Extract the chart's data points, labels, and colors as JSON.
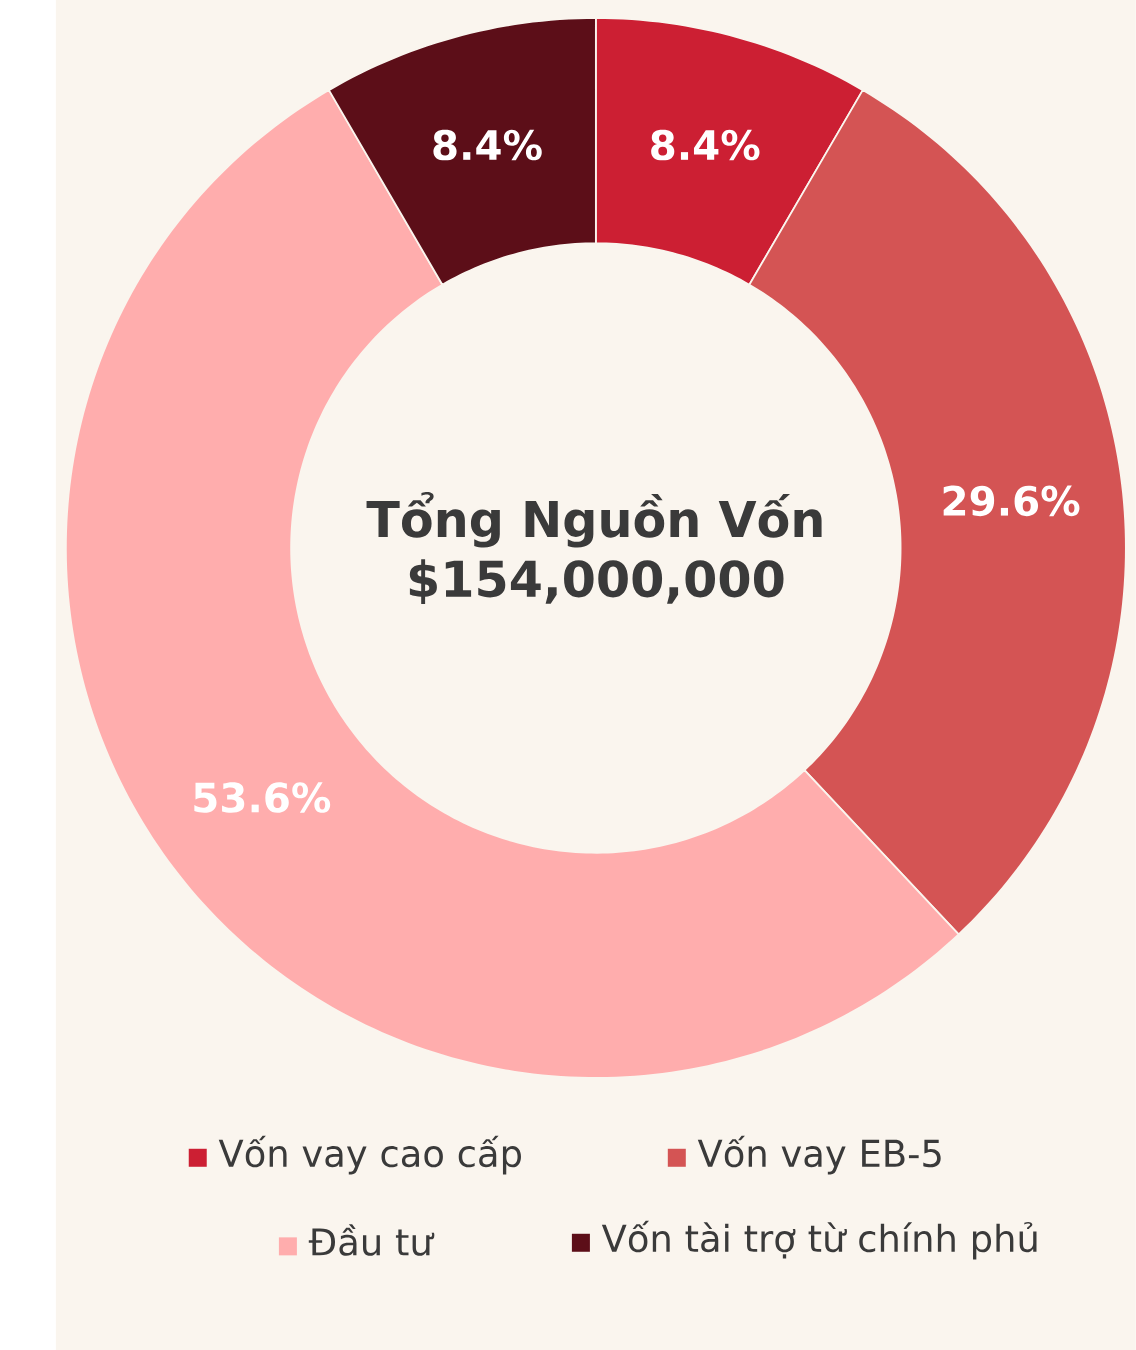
{
  "chart_data": {
    "type": "donut",
    "title": "Tổng Nguồn Vốn",
    "subtitle": "$154,000,000",
    "categories": [
      "Vốn vay cao cấp",
      "Vốn vay EB-5",
      "Đầu tư",
      "Vốn tài trợ từ chính phủ"
    ],
    "values": [
      8.4,
      29.6,
      53.6,
      8.4
    ],
    "colors": [
      "#cc1f33",
      "#d45454",
      "#ffadad",
      "#5c0e18"
    ],
    "value_labels": [
      "8.4%",
      "29.6%",
      "53.6%",
      "8.4%"
    ],
    "legend": "bottom"
  }
}
